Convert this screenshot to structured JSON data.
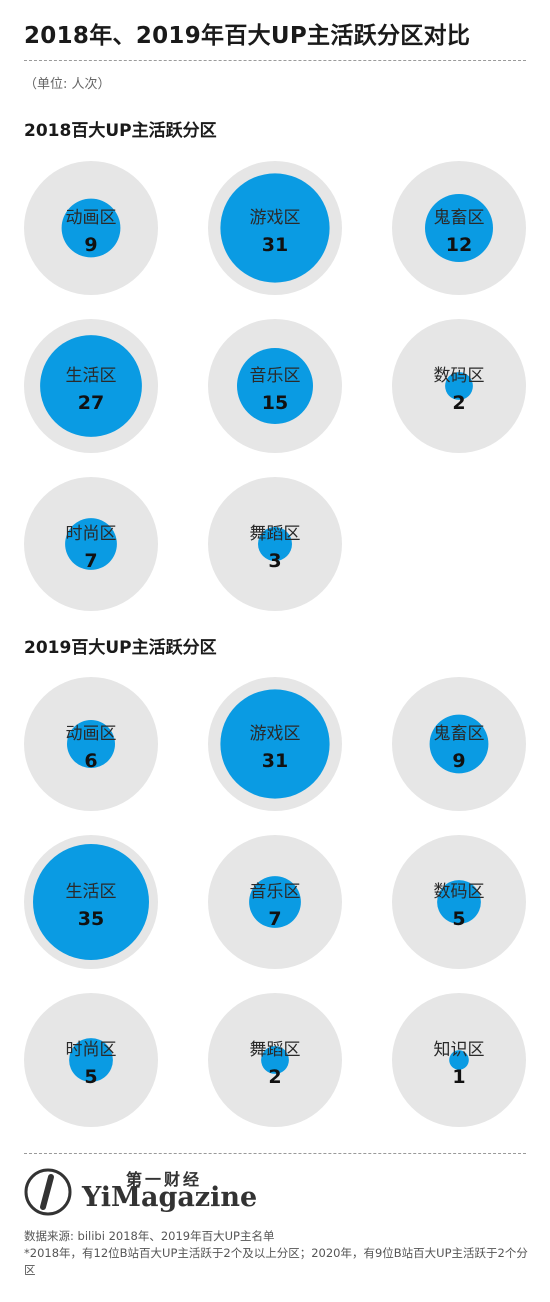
{
  "title": "2018年、2019年百大UP主活跃分区对比",
  "unit": "（单位: 人次）",
  "colors": {
    "bubble": "#0a9be3",
    "background_circle": "#e6e6e6"
  },
  "chart_data": [
    {
      "type": "bubble",
      "title": "2018百大UP主活跃分区",
      "categories": [
        "动画区",
        "游戏区",
        "鬼畜区",
        "生活区",
        "音乐区",
        "数码区",
        "时尚区",
        "舞蹈区"
      ],
      "values": [
        9,
        31,
        12,
        27,
        15,
        2,
        7,
        3
      ],
      "max_value": 35
    },
    {
      "type": "bubble",
      "title": "2019百大UP主活跃分区",
      "categories": [
        "动画区",
        "游戏区",
        "鬼畜区",
        "生活区",
        "音乐区",
        "数码区",
        "时尚区",
        "舞蹈区",
        "知识区"
      ],
      "values": [
        6,
        31,
        9,
        35,
        7,
        5,
        5,
        2,
        1
      ],
      "max_value": 35
    }
  ],
  "logo": {
    "cn": "第一财经",
    "en": "YiMagazine"
  },
  "source": "数据来源: bilibi 2018年、2019年百大UP主名单",
  "footnote": "*2018年，有12位B站百大UP主活跃于2个及以上分区；2020年，有9位B站百大UP主活跃于2个分区"
}
